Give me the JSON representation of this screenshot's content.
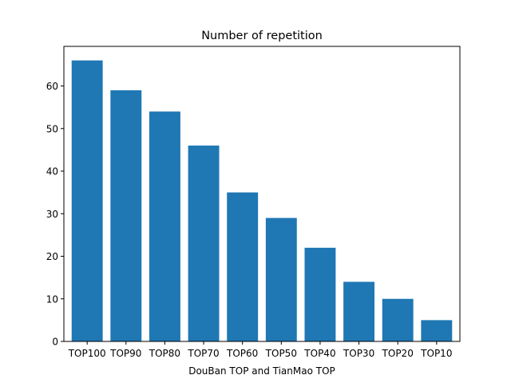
{
  "chart_data": {
    "type": "bar",
    "title": "Number of repetition",
    "xlabel": "DouBan TOP and TianMao TOP",
    "ylabel": "",
    "categories": [
      "TOP100",
      "TOP90",
      "TOP80",
      "TOP70",
      "TOP60",
      "TOP50",
      "TOP40",
      "TOP30",
      "TOP20",
      "TOP10"
    ],
    "values": [
      66,
      59,
      54,
      46,
      35,
      29,
      22,
      14,
      10,
      5
    ],
    "ylim": [
      0,
      69.3
    ],
    "yticks": [
      0,
      10,
      20,
      30,
      40,
      50,
      60
    ],
    "bar_color": "#1f77b4",
    "grid": false,
    "legend": "none"
  }
}
